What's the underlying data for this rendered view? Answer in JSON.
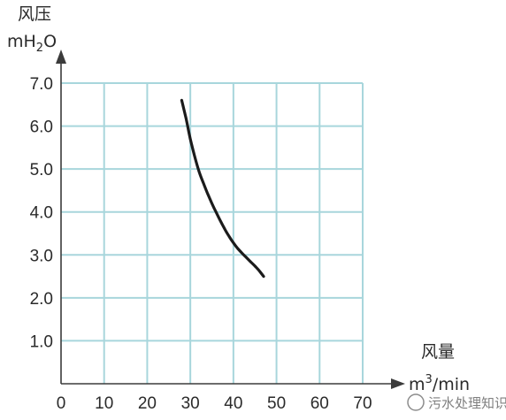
{
  "chart_data": {
    "type": "line",
    "title": "",
    "ylabel_line1": "风压",
    "ylabel_line2_prefix": "mH",
    "ylabel_line2_sub": "2",
    "ylabel_line2_suffix": "O",
    "xlabel_line1": "风量",
    "xlabel_line2_prefix": "m",
    "xlabel_line2_sup": "3",
    "xlabel_line2_suffix": "/min",
    "x_ticks": [
      "0",
      "10",
      "20",
      "30",
      "40",
      "50",
      "60",
      "70"
    ],
    "y_ticks": [
      "1.0",
      "2.0",
      "3.0",
      "4.0",
      "5.0",
      "6.0",
      "7.0"
    ],
    "xlim": [
      0,
      70
    ],
    "ylim": [
      0,
      7
    ],
    "grid": true,
    "series": [
      {
        "x": [
          28,
          29,
          30,
          31,
          32,
          33,
          34,
          35,
          36,
          37,
          38,
          39,
          40,
          41,
          42,
          43,
          44,
          45,
          46,
          47
        ],
        "y": [
          6.6,
          6.18,
          5.7,
          5.3,
          4.95,
          4.68,
          4.43,
          4.2,
          3.99,
          3.79,
          3.6,
          3.43,
          3.28,
          3.15,
          3.04,
          2.94,
          2.84,
          2.74,
          2.63,
          2.5
        ]
      }
    ],
    "colors": {
      "grid": "#a8d6dc",
      "line": "#1b1b1b"
    }
  },
  "watermark": "污水处理知识"
}
